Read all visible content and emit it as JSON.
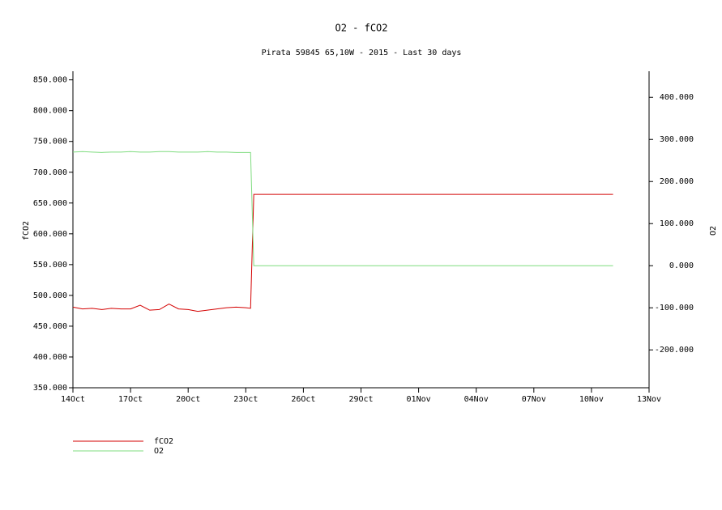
{
  "chart_data": {
    "type": "line",
    "title": "O2 - fCO2",
    "subtitle": "Pirata 59845 65,10W - 2015 - Last 30 days",
    "y_label": "fCO2",
    "y2_label": "O2",
    "x": [
      "2015-10-14T00:00",
      "2015-10-14T12:00",
      "2015-10-15T00:00",
      "2015-10-15T12:00",
      "2015-10-16T00:00",
      "2015-10-16T12:00",
      "2015-10-17T00:00",
      "2015-10-17T12:00",
      "2015-10-18T00:00",
      "2015-10-18T12:00",
      "2015-10-19T00:00",
      "2015-10-19T12:00",
      "2015-10-20T00:00",
      "2015-10-20T12:00",
      "2015-10-21T00:00",
      "2015-10-21T12:00",
      "2015-10-22T00:00",
      "2015-10-22T12:00",
      "2015-10-23T00:00",
      "2015-10-23T06:00",
      "2015-10-23T10:00",
      "2015-11-11T03:00"
    ],
    "series": [
      {
        "name": "fCO2",
        "color": "#d40000",
        "values": [
          481,
          478,
          479,
          477,
          479,
          478,
          478,
          484,
          476,
          477,
          486,
          478,
          477,
          474,
          476,
          478,
          480,
          481,
          480,
          479,
          664,
          664
        ]
      },
      {
        "name": "O2",
        "color": "#7fdc7f",
        "axis": "y2",
        "values": [
          270,
          271,
          270,
          269,
          270,
          270,
          271,
          270,
          270,
          271,
          271,
          270,
          270,
          270,
          271,
          270,
          270,
          269,
          269,
          269,
          0,
          0
        ]
      }
    ],
    "xlim": [
      "2015-10-14",
      "2015-11-13"
    ],
    "xticks": [
      {
        "value": "2015-10-14",
        "label": "14Oct"
      },
      {
        "value": "2015-10-17",
        "label": "17Oct"
      },
      {
        "value": "2015-10-20",
        "label": "20Oct"
      },
      {
        "value": "2015-10-23",
        "label": "23Oct"
      },
      {
        "value": "2015-10-26",
        "label": "26Oct"
      },
      {
        "value": "2015-10-29",
        "label": "29Oct"
      },
      {
        "value": "2015-11-01",
        "label": "01Nov"
      },
      {
        "value": "2015-11-04",
        "label": "04Nov"
      },
      {
        "value": "2015-11-07",
        "label": "07Nov"
      },
      {
        "value": "2015-11-10",
        "label": "10Nov"
      },
      {
        "value": "2015-11-13",
        "label": "13Nov"
      }
    ],
    "ylim": [
      350,
      864
    ],
    "yticks": [
      {
        "value": 350,
        "label": "350.000"
      },
      {
        "value": 400,
        "label": "400.000"
      },
      {
        "value": 450,
        "label": "450.000"
      },
      {
        "value": 500,
        "label": "500.000"
      },
      {
        "value": 550,
        "label": "550.000"
      },
      {
        "value": 600,
        "label": "600.000"
      },
      {
        "value": 650,
        "label": "650.000"
      },
      {
        "value": 700,
        "label": "700.000"
      },
      {
        "value": 750,
        "label": "750.000"
      },
      {
        "value": 800,
        "label": "800.000"
      },
      {
        "value": 850,
        "label": "850.000"
      }
    ],
    "y2lim": [
      -290,
      462
    ],
    "y2ticks": [
      {
        "value": -200,
        "label": "-200.000"
      },
      {
        "value": -100,
        "label": "-100.000"
      },
      {
        "value": 0,
        "label": "0.000"
      },
      {
        "value": 100,
        "label": "100.000"
      },
      {
        "value": 200,
        "label": "200.000"
      },
      {
        "value": 300,
        "label": "300.000"
      },
      {
        "value": 400,
        "label": "400.000"
      }
    ]
  }
}
